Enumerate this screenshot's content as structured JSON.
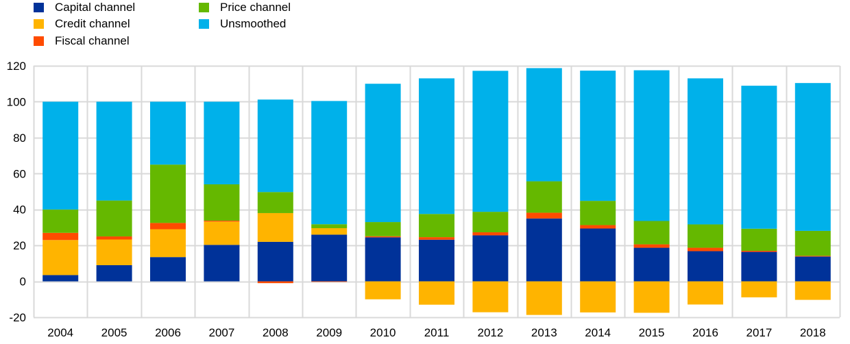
{
  "chart_data": {
    "type": "bar",
    "stacked": true,
    "title": "",
    "xlabel": "",
    "ylabel": "",
    "ylim": [
      -20,
      120
    ],
    "yticks": [
      -20,
      0,
      20,
      40,
      60,
      80,
      100,
      120
    ],
    "grid": true,
    "legend_position": "top-left",
    "categories": [
      "2004",
      "2005",
      "2006",
      "2007",
      "2008",
      "2009",
      "2010",
      "2011",
      "2012",
      "2013",
      "2014",
      "2015",
      "2016",
      "2017",
      "2018"
    ],
    "series": [
      {
        "name": "Capital channel",
        "color": "#003299",
        "values": [
          3.5,
          9.0,
          13.5,
          20.3,
          22.0,
          26.0,
          24.5,
          23.2,
          25.6,
          35.0,
          29.4,
          18.7,
          16.8,
          16.4,
          13.8
        ]
      },
      {
        "name": "Credit channel",
        "color": "#FFB400",
        "values": [
          19.5,
          14.3,
          15.5,
          13.0,
          16.0,
          3.6,
          -10.0,
          -13.0,
          -17.2,
          -18.7,
          -17.3,
          -17.5,
          -12.9,
          -8.9,
          -10.3
        ]
      },
      {
        "name": "Fiscal channel",
        "color": "#FF4B00",
        "values": [
          4.0,
          1.7,
          3.5,
          0.5,
          -1.0,
          -0.3,
          0.6,
          1.4,
          1.7,
          3.2,
          1.9,
          1.9,
          1.9,
          0.6,
          0.4
        ]
      },
      {
        "name": "Price channel",
        "color": "#65B800",
        "values": [
          13.0,
          20.0,
          32.5,
          20.2,
          11.7,
          2.2,
          7.9,
          12.9,
          11.4,
          17.5,
          13.5,
          13.0,
          13.0,
          12.3,
          13.9
        ]
      },
      {
        "name": "Unsmoothed",
        "color": "#00B1EA",
        "values": [
          60.0,
          55.0,
          35.0,
          46.0,
          51.5,
          68.6,
          77.0,
          75.5,
          78.5,
          63.0,
          72.5,
          83.9,
          81.3,
          79.6,
          82.3
        ]
      }
    ]
  },
  "legend": {
    "items": [
      {
        "label": "Capital channel",
        "color": "#003299"
      },
      {
        "label": "Credit channel",
        "color": "#FFB400"
      },
      {
        "label": "Fiscal channel",
        "color": "#FF4B00"
      },
      {
        "label": "Price channel",
        "color": "#65B800"
      },
      {
        "label": "Unsmoothed",
        "color": "#00B1EA"
      }
    ]
  },
  "colors": {
    "grid": "#D9D9D9",
    "background": "#FFFFFF"
  }
}
